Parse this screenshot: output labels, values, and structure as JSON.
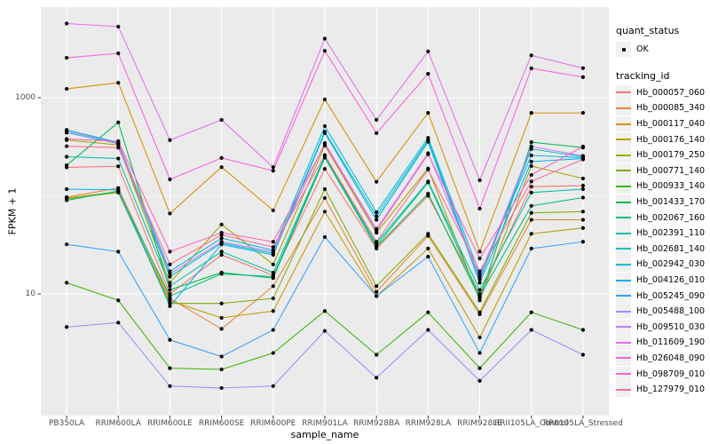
{
  "figure": {
    "panel_bg": "#EBEBEB",
    "grid_color": "#FFFFFF",
    "tick_color": "#333333",
    "point_color": "#000000",
    "axis_text_color": "#4D4D4D"
  },
  "axes": {
    "xlabel": "sample_name",
    "ylabel": "FPKM + 1",
    "yticks": [
      {
        "value": 1000,
        "label": "1000"
      },
      {
        "value": 10,
        "label": "10"
      }
    ]
  },
  "legend": {
    "quant_status_title": "quant_status",
    "quant_status_items": [
      {
        "label": "OK",
        "marker": "point"
      }
    ],
    "tracking_id_title": "tracking_id"
  },
  "chart_data": {
    "type": "line",
    "yscale": "log10",
    "grid": "on",
    "legend_position": "right",
    "title": "",
    "xlabel": "sample_name",
    "ylabel": "FPKM + 1",
    "ylim": [
      1,
      8000
    ],
    "x_categories": [
      "PB350LA",
      "RRIM600LA",
      "RRIM600LE",
      "RRIM600SE",
      "RRIM600PE",
      "RRIM901LA",
      "RRIM928BA",
      "RRIM928LA",
      "RRIM928LE",
      "RRII105LA_Control",
      "RRII105LA_Stressed"
    ],
    "series": [
      {
        "name": "Hb_000057_060",
        "color": "#F8766D",
        "values": [
          195,
          200,
          10,
          25,
          15.5,
          188,
          29,
          100,
          10,
          124,
          127
        ]
      },
      {
        "name": "Hb_000085_340",
        "color": "#EA8331",
        "values": [
          97,
          120,
          9,
          4.4,
          12,
          95,
          10.5,
          39,
          6.2,
          57,
          57
        ]
      },
      {
        "name": "Hb_000117_040",
        "color": "#D89000",
        "values": [
          1230,
          1420,
          66,
          196,
          71,
          960,
          139,
          700,
          27,
          700,
          700
        ]
      },
      {
        "name": "Hb_000176_140",
        "color": "#C09B00",
        "values": [
          95,
          110,
          8.5,
          5.7,
          6.7,
          69,
          9.5,
          29,
          3.6,
          41,
          47
        ]
      },
      {
        "name": "Hb_000179_250",
        "color": "#A3A500",
        "values": [
          370,
          330,
          13,
          51,
          20,
          325,
          42,
          190,
          8.6,
          201,
          150
        ]
      },
      {
        "name": "Hb_000771_140",
        "color": "#7CAE00",
        "values": [
          93,
          108,
          8,
          8,
          9,
          117,
          12,
          41,
          6.5,
          67,
          69
        ]
      },
      {
        "name": "Hb_000933_140",
        "color": "#39B600",
        "values": [
          13,
          8.6,
          1.75,
          1.7,
          2.5,
          6.7,
          2.4,
          6.5,
          1.75,
          6.5,
          4.3
        ]
      },
      {
        "name": "Hb_001433_170",
        "color": "#00BB4E",
        "values": [
          205,
          560,
          11,
          16.5,
          14.5,
          245,
          30,
          105,
          9,
          352,
          310
        ]
      },
      {
        "name": "Hb_002067_160",
        "color": "#00BF7D",
        "values": [
          90,
          112,
          9.5,
          16,
          15,
          250,
          31,
          137,
          9.5,
          79,
          96
        ]
      },
      {
        "name": "Hb_002391_110",
        "color": "#00C1A3",
        "values": [
          250,
          240,
          12,
          27,
          16.5,
          255,
          33,
          140,
          11,
          108,
          117
        ]
      },
      {
        "name": "Hb_002681_140",
        "color": "#00BFC4",
        "values": [
          440,
          340,
          15,
          33,
          26,
          450,
          62,
          370,
          14,
          300,
          250
        ]
      },
      {
        "name": "Hb_002942_030",
        "color": "#00BAE0",
        "values": [
          470,
          350,
          17,
          37,
          28,
          513,
          68,
          390,
          16,
          258,
          245
        ]
      },
      {
        "name": "Hb_004126_010",
        "color": "#00B0F6",
        "values": [
          117,
          115,
          7.5,
          32,
          25,
          437,
          57,
          355,
          13,
          223,
          240
        ]
      },
      {
        "name": "Hb_005245_090",
        "color": "#35A2FF",
        "values": [
          32,
          27,
          3.4,
          2.3,
          4.3,
          38,
          9.5,
          24,
          2.5,
          29,
          34
        ]
      },
      {
        "name": "Hb_005488_100",
        "color": "#9590FF",
        "values": [
          4.6,
          5.1,
          1.15,
          1.1,
          1.15,
          4.2,
          1.4,
          4.3,
          1.3,
          4.3,
          2.4
        ]
      },
      {
        "name": "Hb_009510_030",
        "color": "#C77CFF",
        "values": [
          455,
          345,
          16,
          34,
          27,
          345,
          46,
          272,
          15,
          318,
          255
        ]
      },
      {
        "name": "Hb_011609_190",
        "color": "#E76BF3",
        "values": [
          5700,
          5300,
          370,
          594,
          196,
          4000,
          594,
          2960,
          144,
          2700,
          2000
        ]
      },
      {
        "name": "Hb_026048_090",
        "color": "#FA62DB",
        "values": [
          2550,
          2830,
          147,
          243,
          180,
          3000,
          435,
          1750,
          74,
          1990,
          1620
        ]
      },
      {
        "name": "Hb_098709_010",
        "color": "#FF62BC",
        "values": [
          380,
          360,
          27,
          42,
          34,
          335,
          44,
          265,
          23,
          163,
          318
        ]
      },
      {
        "name": "Hb_127979_010",
        "color": "#FF6A98",
        "values": [
          320,
          310,
          20,
          40,
          30,
          260,
          34,
          185,
          17,
          140,
          235
        ]
      }
    ]
  }
}
